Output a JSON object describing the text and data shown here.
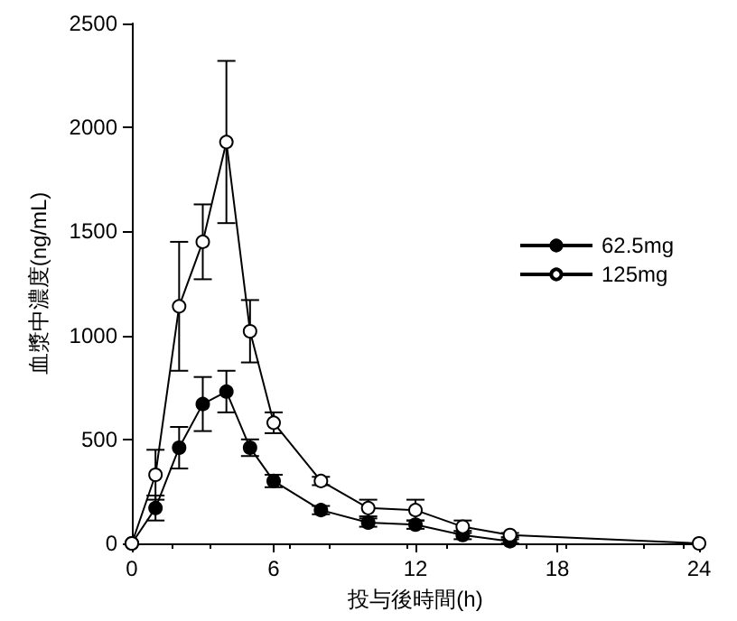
{
  "chart_data": {
    "type": "line",
    "xlabel": "投与後時間(h)",
    "ylabel": "血漿中濃度(ng/mL)",
    "x": [
      0,
      1,
      2,
      3,
      4,
      5,
      6,
      8,
      10,
      12,
      14,
      16,
      24
    ],
    "series": [
      {
        "name": "62.5mg",
        "color": "#000000",
        "values": [
          0,
          170,
          460,
          670,
          730,
          460,
          300,
          160,
          100,
          90,
          40,
          10,
          null
        ],
        "errors": [
          null,
          60,
          100,
          130,
          100,
          40,
          30,
          20,
          20,
          20,
          20,
          10,
          null
        ]
      },
      {
        "name": "125mg",
        "color": "#000000",
        "values": [
          0,
          330,
          1140,
          1450,
          1930,
          1020,
          580,
          300,
          170,
          160,
          80,
          40,
          0
        ],
        "errors": [
          null,
          120,
          310,
          180,
          390,
          150,
          50,
          20,
          40,
          50,
          30,
          10,
          null
        ]
      }
    ],
    "xlim": [
      0,
      24
    ],
    "xticks": [
      0,
      6,
      12,
      18,
      24
    ],
    "ylim": [
      0,
      2500
    ],
    "yticks": [
      0,
      500,
      1000,
      1500,
      2000,
      2500
    ],
    "grid": false,
    "legend": "right",
    "marker": "circle",
    "line_style": "solid"
  }
}
